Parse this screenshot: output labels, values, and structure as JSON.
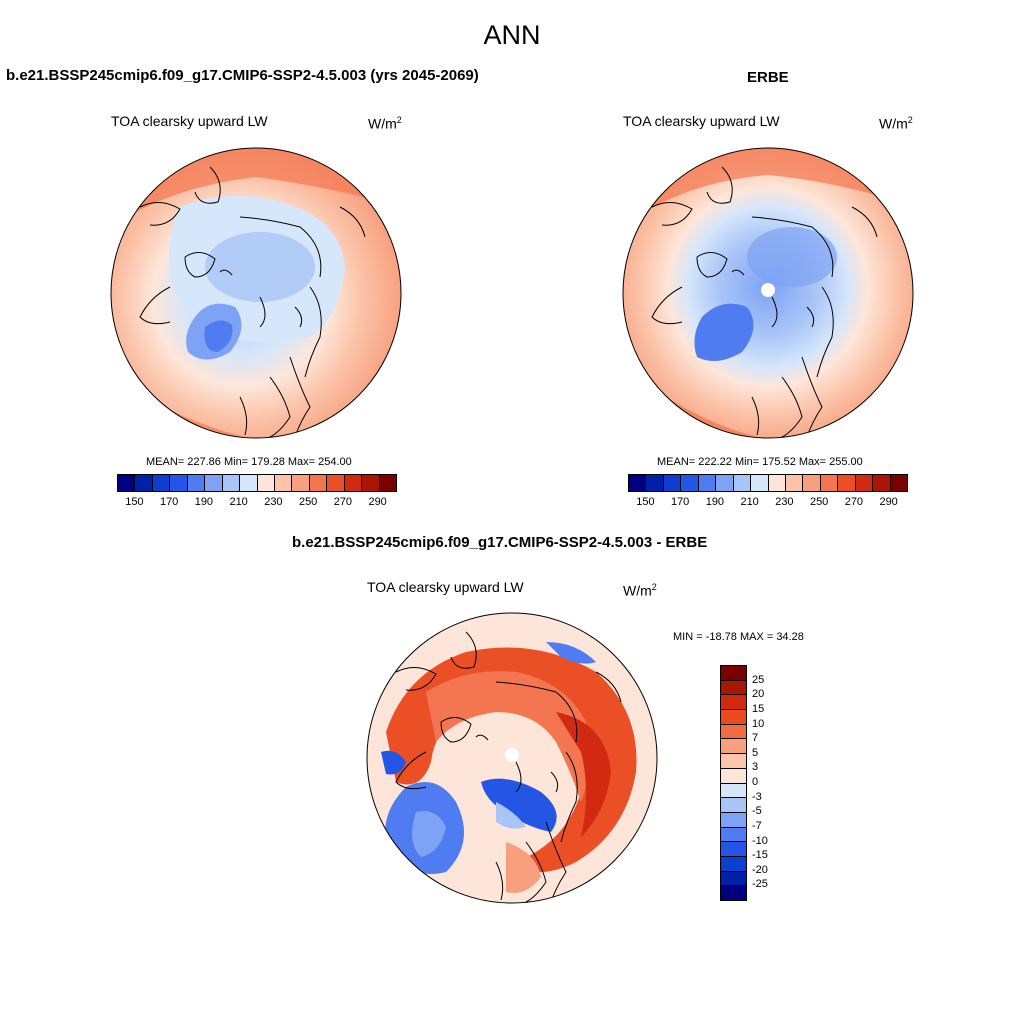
{
  "main_title": "ANN",
  "panels": [
    {
      "title": "b.e21.BSSP245cmip6.f09_g17.CMIP6-SSP2-4.5.003 (yrs 2045-2069)",
      "variable": "TOA clearsky upward LW",
      "units": "W/m",
      "units_exp": "2",
      "stats": "MEAN= 227.86  Min= 179.28  Max= 254.00"
    },
    {
      "title": "ERBE",
      "variable": "TOA clearsky upward LW",
      "units": "W/m",
      "units_exp": "2",
      "stats": "MEAN= 222.22  Min= 175.52  Max= 255.00"
    },
    {
      "title": "b.e21.BSSP245cmip6.f09_g17.CMIP6-SSP2-4.5.003 - ERBE",
      "variable": "TOA clearsky upward LW",
      "units": "W/m",
      "units_exp": "2",
      "stats": "MIN = -18.78 MAX =  34.28"
    }
  ],
  "colorbar_abs": {
    "colors": [
      "#00007f",
      "#0020a8",
      "#0c3fd0",
      "#2456e6",
      "#4f7cf0",
      "#7ea2f4",
      "#a9c5f7",
      "#d6e6fb",
      "#fde6d9",
      "#fbc3a9",
      "#f8a07e",
      "#f47650",
      "#ea4f26",
      "#d22a10",
      "#aa1504",
      "#7a0000"
    ],
    "labels": [
      "150",
      "170",
      "190",
      "210",
      "230",
      "250",
      "270",
      "290"
    ]
  },
  "colorbar_diff": {
    "colors": [
      "#7a0000",
      "#a81604",
      "#d0290e",
      "#ea4a1e",
      "#f36c40",
      "#f8a07e",
      "#fbc6ac",
      "#fde6d9",
      "#d6e6fb",
      "#a9c5f7",
      "#7ea2f4",
      "#4f7cf0",
      "#2456e6",
      "#0c3fd0",
      "#0020a8",
      "#00007f"
    ],
    "labels": [
      "25",
      "20",
      "15",
      "10",
      "7",
      "5",
      "3",
      "0",
      "-3",
      "-5",
      "-7",
      "-10",
      "-15",
      "-20",
      "-25"
    ]
  }
}
